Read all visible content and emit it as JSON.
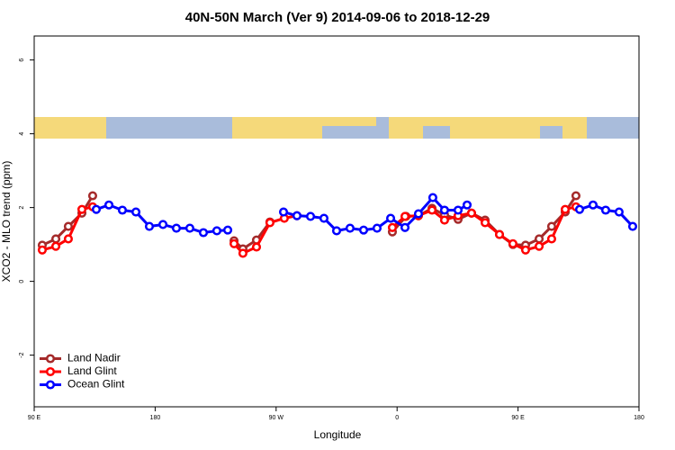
{
  "chart_data": {
    "type": "line",
    "title": "40N-50N March (Ver 9)   2014-09-06 to 2018-12-29",
    "xlabel": "Longitude",
    "ylabel": "XCO2 - MLO trend (ppm)",
    "xlim": [
      90,
      540
    ],
    "xticks": [
      {
        "value": 90,
        "label": "90 E"
      },
      {
        "value": 180,
        "label": "180"
      },
      {
        "value": 270,
        "label": "90 W"
      },
      {
        "value": 360,
        "label": "0"
      },
      {
        "value": 450,
        "label": "90 E"
      },
      {
        "value": 540,
        "label": "180"
      }
    ],
    "ylim": [
      -3.4,
      6.65
    ],
    "yticks": [
      -2,
      0,
      2,
      4,
      6
    ],
    "legend": "bottomleft",
    "series": [
      {
        "name": "Land Nadir",
        "color": "#a52a2a",
        "x": [
          96.0,
          106.1,
          115.4,
          125.5,
          133.5,
          null,
          238.7,
          245.3,
          255.4,
          265.4,
          null,
          356.5,
          366.6,
          375.9,
          386.0,
          395.3,
          405.4,
          415.4,
          425.5,
          436.2,
          446.2,
          455.6,
          465.7,
          475.0,
          485.1,
          493.1
        ],
        "values": [
          0.98,
          1.15,
          1.49,
          1.85,
          2.32,
          null,
          1.1,
          0.88,
          1.12,
          1.61,
          null,
          1.34,
          1.76,
          1.78,
          1.98,
          1.8,
          1.68,
          1.85,
          1.66,
          1.27,
          1.0,
          0.98,
          1.15,
          1.49,
          1.88,
          2.32
        ]
      },
      {
        "name": "Land Glint",
        "color": "#ff0000",
        "x": [
          96.0,
          106.1,
          115.4,
          125.5,
          133.5,
          null,
          238.7,
          245.3,
          255.4,
          265.4,
          276.1,
          285.5,
          null,
          356.5,
          365.9,
          375.9,
          386.0,
          395.3,
          405.4,
          415.4,
          425.5,
          436.2,
          446.2,
          455.6,
          465.7,
          475.0,
          485.1,
          493.1
        ],
        "values": [
          0.85,
          0.95,
          1.15,
          1.95,
          2.02,
          null,
          1.02,
          0.76,
          0.93,
          1.59,
          1.71,
          1.78,
          null,
          1.46,
          1.76,
          1.78,
          1.93,
          1.66,
          1.78,
          1.85,
          1.59,
          1.27,
          1.02,
          0.85,
          0.95,
          1.15,
          1.95,
          2.02
        ]
      },
      {
        "name": "Ocean Glint",
        "color": "#0000ff",
        "x": [
          136.2,
          145.6,
          155.6,
          165.7,
          175.7,
          185.8,
          195.8,
          205.8,
          215.9,
          225.9,
          234.0,
          null,
          275.5,
          285.5,
          295.6,
          305.6,
          315.0,
          325.0,
          335.1,
          345.1,
          355.2,
          365.9,
          375.9,
          386.6,
          395.3,
          405.4,
          412.1,
          null,
          495.8,
          505.8,
          515.2,
          525.2,
          535.3
        ],
        "values": [
          1.95,
          2.07,
          1.93,
          1.88,
          1.49,
          1.54,
          1.44,
          1.44,
          1.32,
          1.37,
          1.39,
          null,
          1.88,
          1.78,
          1.76,
          1.71,
          1.37,
          1.44,
          1.39,
          1.44,
          1.71,
          1.46,
          1.83,
          2.27,
          1.93,
          1.93,
          2.07,
          null,
          1.95,
          2.07,
          1.93,
          1.88,
          1.49
        ]
      }
    ]
  }
}
